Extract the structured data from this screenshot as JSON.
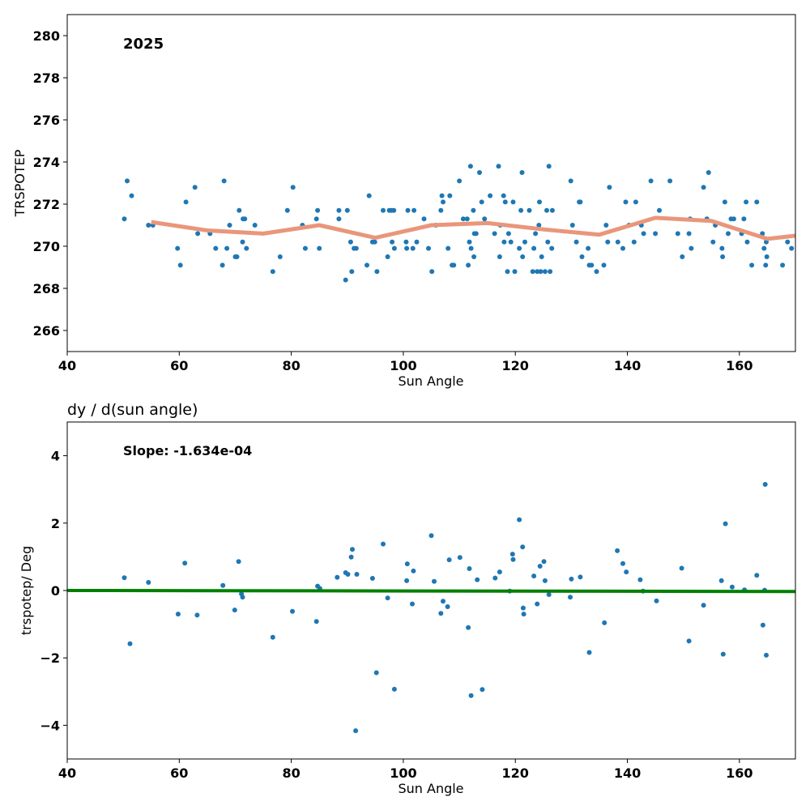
{
  "chart_data": [
    {
      "type": "scatter",
      "title": "",
      "annotation": "2025",
      "xlabel": "Sun Angle",
      "ylabel": "TRSPOTEP",
      "xlim": [
        40,
        170
      ],
      "ylim": [
        265,
        281
      ],
      "xticks": [
        "40",
        "60",
        "80",
        "100",
        "120",
        "140",
        "160"
      ],
      "yticks": [
        "266",
        "268",
        "270",
        "272",
        "274",
        "276",
        "278",
        "280"
      ],
      "grid": false,
      "colors": {
        "points": "#1f77b4",
        "trend": "#e9967a"
      },
      "series": [
        {
          "type": "scatter",
          "x": [
            50.2,
            50.7,
            51.5,
            54.5,
            55.3,
            59.7,
            60.2,
            61.2,
            62.8,
            63.3,
            65.5,
            66.5,
            67.7,
            68.0,
            68.5,
            69.0,
            70.0,
            70.3,
            70.7,
            71.3,
            71.4,
            71.7,
            72.0,
            73.5,
            76.7,
            78.0,
            79.3,
            80.3,
            82.0,
            82.5,
            84.5,
            84.7,
            85.0,
            88.5,
            88.5,
            89.7,
            90.0,
            90.6,
            90.8,
            91.2,
            91.6,
            93.5,
            93.9,
            94.5,
            94.9,
            95.3,
            96.4,
            97.2,
            97.5,
            97.9,
            98.0,
            98.3,
            98.4,
            100.5,
            100.6,
            100.8,
            101.7,
            101.9,
            102.4,
            103.7,
            104.5,
            105.1,
            105.8,
            106.7,
            106.9,
            107.1,
            108.0,
            108.3,
            108.7,
            109.0,
            110.0,
            110.7,
            111.4,
            111.6,
            111.8,
            112.0,
            112.1,
            112.5,
            112.6,
            112.7,
            113.0,
            113.6,
            114.0,
            114.5,
            115.5,
            116.3,
            117.0,
            117.2,
            117.3,
            117.9,
            118.0,
            118.2,
            118.6,
            118.8,
            119.2,
            119.6,
            119.9,
            120.7,
            121.0,
            121.2,
            121.3,
            121.7,
            122.5,
            123.1,
            123.3,
            123.6,
            123.9,
            124.2,
            124.3,
            124.5,
            124.7,
            125.3,
            125.6,
            125.8,
            126.0,
            126.2,
            126.5,
            126.6,
            129.9,
            130.2,
            130.9,
            131.4,
            131.6,
            131.9,
            133.0,
            133.2,
            133.6,
            134.5,
            135.8,
            136.2,
            136.5,
            136.8,
            138.3,
            139.2,
            139.7,
            140.3,
            141.2,
            141.5,
            142.5,
            142.9,
            144.2,
            145.0,
            145.7,
            147.6,
            149.0,
            149.8,
            151.0,
            151.2,
            151.4,
            153.6,
            154.2,
            154.5,
            155.3,
            155.7,
            156.9,
            157.0,
            157.4,
            158.0,
            158.5,
            159.0,
            160.4,
            160.8,
            161.2,
            161.4,
            162.2,
            163.1,
            164.1,
            164.4,
            164.7,
            164.8,
            164.9,
            167.7,
            168.6,
            169.3
          ],
          "y": [
            271.3,
            273.1,
            272.4,
            271.0,
            271.0,
            269.9,
            269.1,
            272.1,
            272.8,
            270.6,
            270.6,
            269.9,
            269.1,
            273.1,
            269.9,
            271.0,
            269.5,
            269.5,
            271.7,
            270.2,
            271.3,
            271.3,
            269.9,
            271.0,
            268.8,
            269.5,
            271.7,
            272.8,
            271.0,
            269.9,
            271.3,
            271.7,
            269.9,
            271.3,
            271.7,
            268.4,
            271.7,
            270.2,
            268.8,
            269.9,
            269.9,
            269.1,
            272.4,
            270.2,
            270.2,
            268.8,
            271.7,
            269.5,
            271.7,
            271.7,
            270.2,
            271.7,
            269.9,
            270.2,
            269.9,
            271.7,
            269.9,
            271.7,
            270.2,
            271.3,
            269.9,
            268.8,
            271.0,
            271.7,
            272.4,
            272.1,
            269.9,
            272.4,
            269.1,
            269.1,
            273.1,
            271.3,
            271.3,
            269.1,
            270.2,
            273.8,
            269.9,
            271.7,
            269.5,
            270.6,
            270.6,
            273.5,
            272.1,
            271.3,
            272.4,
            270.6,
            273.8,
            269.5,
            271.0,
            272.4,
            270.2,
            272.1,
            268.8,
            270.6,
            270.2,
            272.1,
            268.8,
            269.9,
            271.7,
            273.5,
            269.5,
            270.2,
            271.7,
            268.8,
            269.9,
            270.6,
            268.8,
            271.0,
            272.1,
            268.8,
            269.5,
            268.8,
            271.7,
            270.2,
            273.8,
            268.8,
            269.9,
            271.7,
            273.1,
            271.0,
            270.2,
            272.1,
            272.1,
            269.5,
            269.9,
            269.1,
            269.1,
            268.8,
            269.1,
            271.0,
            270.2,
            272.8,
            270.2,
            269.9,
            272.1,
            271.0,
            270.2,
            272.1,
            271.0,
            270.6,
            273.1,
            270.6,
            271.7,
            273.1,
            270.6,
            269.5,
            270.6,
            271.3,
            269.9,
            272.8,
            271.3,
            273.5,
            270.2,
            271.0,
            269.9,
            269.5,
            272.1,
            270.6,
            271.3,
            271.3,
            270.6,
            271.3,
            272.1,
            270.2,
            269.1,
            272.1,
            270.6,
            269.9,
            269.1,
            270.2,
            269.5,
            269.1,
            270.2,
            269.9
          ]
        },
        {
          "type": "line",
          "x": [
            55,
            65,
            75,
            85,
            95,
            105,
            115,
            125,
            135,
            145,
            155,
            165,
            170
          ],
          "y": [
            271.15,
            270.75,
            270.6,
            271.0,
            270.4,
            271.0,
            271.1,
            270.8,
            270.55,
            271.35,
            271.2,
            270.35,
            270.5
          ]
        }
      ]
    },
    {
      "type": "scatter",
      "title": "dy / d(sun angle)",
      "annotation": "Slope: -1.634e-04",
      "xlabel": "Sun Angle",
      "ylabel": "trspotep/ Deg",
      "xlim": [
        40,
        170
      ],
      "ylim": [
        -5,
        5
      ],
      "xticks": [
        "40",
        "60",
        "80",
        "100",
        "120",
        "140",
        "160"
      ],
      "yticks": [
        "−4",
        "−2",
        "0",
        "2",
        "4"
      ],
      "grid": false,
      "colors": {
        "points": "#1f77b4",
        "fit": "#008000"
      },
      "series": [
        {
          "type": "scatter",
          "x": [
            50.2,
            51.2,
            54.5,
            59.8,
            61.0,
            63.2,
            67.8,
            69.9,
            70.6,
            71.1,
            71.3,
            76.7,
            80.2,
            84.5,
            84.7,
            85.1,
            88.2,
            89.7,
            90.1,
            90.7,
            90.9,
            91.5,
            91.7,
            94.5,
            95.2,
            96.4,
            97.2,
            98.4,
            100.6,
            100.7,
            101.6,
            101.8,
            105.0,
            105.5,
            106.7,
            107.1,
            107.9,
            108.2,
            110.1,
            111.6,
            111.8,
            112.1,
            113.2,
            114.1,
            116.4,
            117.2,
            119.0,
            119.5,
            119.6,
            120.7,
            121.3,
            121.4,
            121.5,
            123.3,
            123.9,
            124.4,
            125.1,
            125.3,
            126.0,
            129.8,
            130.0,
            131.6,
            133.2,
            135.9,
            138.2,
            139.2,
            139.8,
            142.3,
            142.8,
            145.2,
            149.7,
            151.0,
            153.6,
            156.8,
            157.1,
            157.5,
            158.7,
            160.9,
            163.1,
            164.2,
            164.5,
            164.6,
            164.8
          ],
          "y": [
            0.38,
            -1.58,
            0.24,
            -0.7,
            0.81,
            -0.73,
            0.15,
            -0.58,
            0.86,
            -0.1,
            -0.2,
            -1.39,
            -0.62,
            -0.92,
            0.13,
            0.06,
            0.39,
            0.53,
            0.48,
            0.99,
            1.22,
            -4.16,
            0.48,
            0.36,
            -2.44,
            1.38,
            -0.22,
            -2.93,
            0.29,
            0.79,
            -0.4,
            0.58,
            1.63,
            0.27,
            -0.68,
            -0.32,
            -0.48,
            0.91,
            0.98,
            -1.1,
            0.65,
            -3.12,
            0.32,
            -2.94,
            0.37,
            0.55,
            -0.02,
            1.08,
            0.92,
            2.1,
            1.29,
            -0.52,
            -0.7,
            0.43,
            -0.4,
            0.72,
            0.86,
            0.29,
            -0.12,
            -0.2,
            0.34,
            0.4,
            -1.84,
            -0.96,
            1.18,
            0.8,
            0.55,
            0.32,
            -0.02,
            -0.31,
            0.66,
            -1.5,
            -0.44,
            0.29,
            -1.89,
            1.98,
            0.1,
            0.02,
            0.45,
            -1.03,
            0.01,
            3.15,
            -1.92
          ]
        },
        {
          "type": "line",
          "x": [
            40,
            170
          ],
          "y": [
            0.0,
            -0.03
          ]
        }
      ]
    }
  ]
}
